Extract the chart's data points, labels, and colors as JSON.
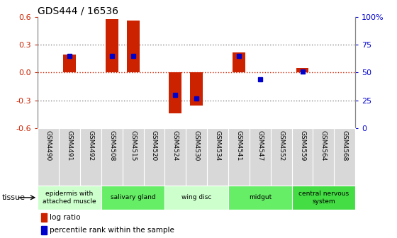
{
  "title": "GDS444 / 16536",
  "samples": [
    "GSM4490",
    "GSM4491",
    "GSM4492",
    "GSM4508",
    "GSM4515",
    "GSM4520",
    "GSM4524",
    "GSM4530",
    "GSM4534",
    "GSM4541",
    "GSM4547",
    "GSM4552",
    "GSM4559",
    "GSM4564",
    "GSM4568"
  ],
  "log_ratio": [
    0.0,
    0.19,
    0.0,
    0.57,
    0.56,
    0.0,
    -0.44,
    -0.35,
    0.0,
    0.22,
    0.0,
    0.0,
    0.05,
    0.0,
    0.0
  ],
  "percentile": [
    null,
    65,
    null,
    65,
    65,
    null,
    30,
    27,
    null,
    65,
    44,
    null,
    51,
    null,
    null
  ],
  "ylim_left": [
    -0.6,
    0.6
  ],
  "ylim_right": [
    0,
    100
  ],
  "yticks_left": [
    -0.6,
    -0.3,
    0.0,
    0.3,
    0.6
  ],
  "yticks_right": [
    0,
    25,
    50,
    75,
    100
  ],
  "tissue_groups": [
    {
      "label": "epidermis with\nattached muscle",
      "start": 0,
      "end": 3,
      "color": "#ccffcc"
    },
    {
      "label": "salivary gland",
      "start": 3,
      "end": 6,
      "color": "#66ee66"
    },
    {
      "label": "wing disc",
      "start": 6,
      "end": 9,
      "color": "#ccffcc"
    },
    {
      "label": "midgut",
      "start": 9,
      "end": 12,
      "color": "#66ee66"
    },
    {
      "label": "central nervous\nsystem",
      "start": 12,
      "end": 15,
      "color": "#44dd44"
    }
  ],
  "bar_color": "#cc2200",
  "percentile_color": "#0000cc",
  "bg_color": "#ffffff",
  "tick_label_color_left": "#cc2200",
  "tick_label_color_right": "#0000cc",
  "zero_line_color": "#cc2200",
  "dotted_color": "#888888"
}
